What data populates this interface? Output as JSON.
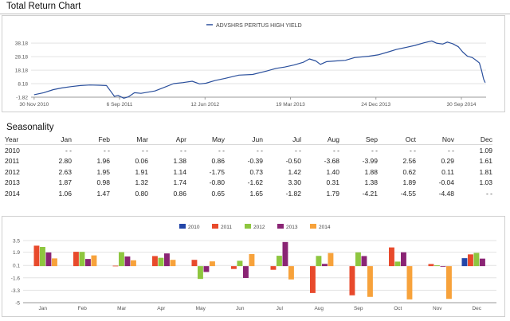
{
  "section1": {
    "title": "Total Return Chart"
  },
  "section2": {
    "title": "Seasonality"
  },
  "line_chart": {
    "legend": "ADVSHRS PERITUS HIGH YIELD",
    "color": "#2a4f9c"
  },
  "table": {
    "headers": [
      "Year",
      "Jan",
      "Feb",
      "Mar",
      "Apr",
      "May",
      "Jun",
      "Jul",
      "Aug",
      "Sep",
      "Oct",
      "Nov",
      "Dec"
    ],
    "rows": [
      [
        "2010",
        "- -",
        "- -",
        "- -",
        "- -",
        "- -",
        "- -",
        "- -",
        "- -",
        "- -",
        "- -",
        "- -",
        "1.09"
      ],
      [
        "2011",
        "2.80",
        "1.96",
        "0.06",
        "1.38",
        "0.86",
        "-0.39",
        "-0.50",
        "-3.68",
        "-3.99",
        "2.56",
        "0.29",
        "1.61"
      ],
      [
        "2012",
        "2.63",
        "1.95",
        "1.91",
        "1.14",
        "-1.75",
        "0.73",
        "1.42",
        "1.40",
        "1.88",
        "0.62",
        "0.11",
        "1.81"
      ],
      [
        "2013",
        "1.87",
        "0.98",
        "1.32",
        "1.74",
        "-0.80",
        "-1.62",
        "3.30",
        "0.31",
        "1.38",
        "1.89",
        "-0.04",
        "1.03"
      ],
      [
        "2014",
        "1.06",
        "1.47",
        "0.80",
        "0.86",
        "0.65",
        "1.65",
        "-1.82",
        "1.79",
        "-4.21",
        "-4.55",
        "-4.48",
        "- -"
      ]
    ]
  },
  "chart_data": [
    {
      "type": "line",
      "series": [
        {
          "name": "ADVSHRS PERITUS HIGH YIELD",
          "points": [
            [
              "2010-11-30",
              0.0
            ],
            [
              "2010-12-31",
              1.5
            ],
            [
              "2011-02-01",
              3.8
            ],
            [
              "2011-03-01",
              5.0
            ],
            [
              "2011-04-01",
              6.0
            ],
            [
              "2011-05-01",
              6.8
            ],
            [
              "2011-06-01",
              7.2
            ],
            [
              "2011-07-01",
              7.0
            ],
            [
              "2011-07-25",
              6.8
            ],
            [
              "2011-08-08",
              2.5
            ],
            [
              "2011-08-20",
              -1.2
            ],
            [
              "2011-09-01",
              -0.5
            ],
            [
              "2011-09-20",
              -2.6
            ],
            [
              "2011-10-05",
              -1.5
            ],
            [
              "2011-10-25",
              1.5
            ],
            [
              "2011-11-15",
              1.0
            ],
            [
              "2011-12-31",
              2.8
            ],
            [
              "2012-02-01",
              5.6
            ],
            [
              "2012-03-01",
              8.2
            ],
            [
              "2012-04-01",
              9.0
            ],
            [
              "2012-05-01",
              10.0
            ],
            [
              "2012-05-25",
              8.0
            ],
            [
              "2012-06-15",
              8.5
            ],
            [
              "2012-07-15",
              10.5
            ],
            [
              "2012-08-15",
              12.0
            ],
            [
              "2012-10-01",
              14.5
            ],
            [
              "2012-11-15",
              15.0
            ],
            [
              "2012-12-31",
              17.5
            ],
            [
              "2013-01-31",
              19.5
            ],
            [
              "2013-02-28",
              20.5
            ],
            [
              "2013-03-31",
              22.0
            ],
            [
              "2013-04-30",
              24.0
            ],
            [
              "2013-05-20",
              26.5
            ],
            [
              "2013-06-10",
              25.0
            ],
            [
              "2013-06-25",
              22.5
            ],
            [
              "2013-07-15",
              24.5
            ],
            [
              "2013-08-15",
              25.0
            ],
            [
              "2013-09-15",
              25.5
            ],
            [
              "2013-10-15",
              27.5
            ],
            [
              "2013-11-30",
              28.5
            ],
            [
              "2013-12-31",
              29.5
            ],
            [
              "2014-01-31",
              31.5
            ],
            [
              "2014-03-01",
              33.5
            ],
            [
              "2014-04-01",
              35.0
            ],
            [
              "2014-05-01",
              36.5
            ],
            [
              "2014-06-01",
              38.5
            ],
            [
              "2014-06-25",
              39.8
            ],
            [
              "2014-07-10",
              38.2
            ],
            [
              "2014-07-31",
              37.5
            ],
            [
              "2014-08-15",
              39.0
            ],
            [
              "2014-09-01",
              37.8
            ],
            [
              "2014-09-20",
              35.5
            ],
            [
              "2014-10-05",
              31.5
            ],
            [
              "2014-10-20",
              28.5
            ],
            [
              "2014-11-05",
              27.5
            ],
            [
              "2014-11-20",
              25.0
            ],
            [
              "2014-11-28",
              23.5
            ],
            [
              "2014-12-05",
              18.0
            ],
            [
              "2014-12-12",
              11.5
            ],
            [
              "2014-12-17",
              9.0
            ]
          ]
        }
      ],
      "x_ticks": [
        "30 Nov 2010",
        "6 Sep 2011",
        "12 Jun 2012",
        "19 Mar 2013",
        "24 Dec 2013",
        "30 Sep 2014"
      ],
      "x_tick_dates": [
        "2010-11-30",
        "2011-09-06",
        "2012-06-12",
        "2013-03-19",
        "2013-12-24",
        "2014-09-30"
      ],
      "x_range": [
        "2010-11-20",
        "2014-12-20"
      ],
      "y_ticks": [
        "-1.82",
        "8.18",
        "18.18",
        "28.18",
        "38.18"
      ],
      "ylim": [
        -1.82,
        43
      ],
      "grid": "horizontal",
      "legend_position": "top-center"
    },
    {
      "type": "bar",
      "categories": [
        "Jan",
        "Feb",
        "Mar",
        "Apr",
        "May",
        "Jun",
        "Jul",
        "Aug",
        "Sep",
        "Oct",
        "Nov",
        "Dec"
      ],
      "series": [
        {
          "name": "2010",
          "color": "#2346a8",
          "values": [
            null,
            null,
            null,
            null,
            null,
            null,
            null,
            null,
            null,
            null,
            null,
            1.09
          ]
        },
        {
          "name": "2011",
          "color": "#e84a2c",
          "values": [
            2.8,
            1.96,
            0.06,
            1.38,
            0.86,
            -0.39,
            -0.5,
            -3.68,
            -3.99,
            2.56,
            0.29,
            1.61
          ]
        },
        {
          "name": "2012",
          "color": "#8ec63f",
          "values": [
            2.63,
            1.95,
            1.91,
            1.14,
            -1.75,
            0.73,
            1.42,
            1.4,
            1.88,
            0.62,
            0.11,
            1.81
          ]
        },
        {
          "name": "2013",
          "color": "#8a2474",
          "values": [
            1.87,
            0.98,
            1.32,
            1.74,
            -0.8,
            -1.62,
            3.3,
            0.31,
            1.38,
            1.89,
            -0.04,
            1.03
          ]
        },
        {
          "name": "2014",
          "color": "#f7a23b",
          "values": [
            1.06,
            1.47,
            0.8,
            0.86,
            0.65,
            1.65,
            -1.82,
            1.79,
            -4.21,
            -4.55,
            -4.48,
            null
          ]
        }
      ],
      "y_ticks": [
        "3.5",
        "1.9",
        "0.1",
        "-1.6",
        "-3.3",
        "-5"
      ],
      "ylim": [
        -5,
        3.5
      ],
      "grid": "horizontal",
      "legend_position": "top-center"
    }
  ]
}
